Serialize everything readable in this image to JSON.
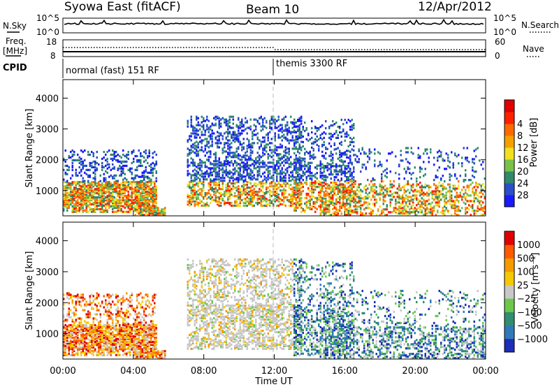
{
  "header": {
    "title": "Syowa East (fitACF)",
    "beam": "Beam 10",
    "date": "12/Apr/2012"
  },
  "noise_panel": {
    "left_label": "N.Sky",
    "right_label": "N.Search",
    "top_tick": "10^5",
    "bottom_tick": "10^0"
  },
  "freq_panel": {
    "left_label_line1": "Freq.",
    "left_label_line2": "[MHz]",
    "right_label": "Nave",
    "left_top_tick": "18",
    "left_bottom_tick": "8",
    "right_top_tick": "60",
    "right_bottom_tick": "0"
  },
  "cpid_panel": {
    "label": "CPID",
    "segment1": "normal (fast) 151 RF",
    "segment2": "themis 3300 RF"
  },
  "chart_data": [
    {
      "type": "heatmap",
      "title": "",
      "ylabel": "Slant Range [km]",
      "xlabel": "",
      "x_range": [
        "00:00",
        "24:00"
      ],
      "ylim": [
        180,
        4600
      ],
      "y_ticks": [
        "1000",
        "2000",
        "3000",
        "4000"
      ],
      "colorbar": {
        "label": "Power [dB]",
        "ticks": [
          "4",
          "8",
          "12",
          "16",
          "20",
          "24",
          "28"
        ],
        "colors": [
          "#1a1aff",
          "#2a4fc8",
          "#2f8a6a",
          "#78c24a",
          "#f0e020",
          "#f5a000",
          "#ff6a00",
          "#ff2000",
          "#e00000"
        ]
      }
    },
    {
      "type": "heatmap",
      "title": "",
      "ylabel": "Slant Range [km]",
      "xlabel": "Time UT",
      "x_range": [
        "00:00",
        "24:00"
      ],
      "ylim": [
        180,
        4600
      ],
      "y_ticks": [
        "1000",
        "2000",
        "3000",
        "4000"
      ],
      "x_ticks": [
        "00:00",
        "04:00",
        "08:00",
        "12:00",
        "16:00",
        "20:00",
        "00:00"
      ],
      "colorbar": {
        "label": "Velocity [m s⁻¹]",
        "ticks": [
          "1000",
          "500",
          "100",
          "25",
          "−25",
          "−100",
          "−500",
          "−1000"
        ],
        "colors": [
          "#1c2db8",
          "#2f7ab8",
          "#2f8f70",
          "#6dc84a",
          "#c8c8c8",
          "#f5c800",
          "#f59a00",
          "#ff5a00",
          "#e00000"
        ]
      }
    }
  ]
}
